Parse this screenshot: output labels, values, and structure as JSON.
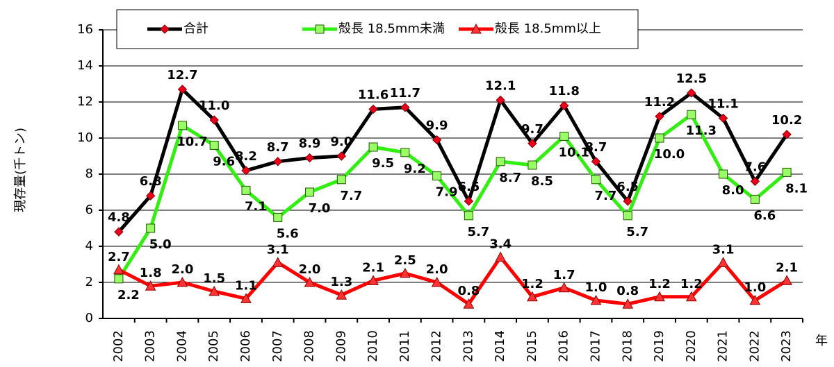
{
  "chart_data": {
    "type": "line",
    "y_label": "現存量(千トン)",
    "x_label": "年",
    "categories": [
      "2002",
      "2003",
      "2004",
      "2005",
      "2006",
      "2007",
      "2008",
      "2009",
      "2010",
      "2011",
      "2012",
      "2013",
      "2014",
      "2015",
      "2016",
      "2017",
      "2018",
      "2019",
      "2020",
      "2021",
      "2022",
      "2023"
    ],
    "series": [
      {
        "name": "合計",
        "color": "#000000",
        "marker": "diamond",
        "marker_color": "#e8001c",
        "values": [
          4.8,
          6.8,
          12.7,
          11.0,
          8.2,
          8.7,
          8.9,
          9.0,
          11.6,
          11.7,
          9.9,
          6.5,
          12.1,
          9.7,
          11.8,
          8.7,
          6.5,
          11.2,
          12.5,
          11.1,
          7.6,
          10.2
        ],
        "value_labels": [
          "4.8",
          "6.8",
          "12.7",
          "11.0",
          "8.2",
          "8.7",
          "8.9",
          "9.0",
          "11.6",
          "11.7",
          "9.9",
          "6.5",
          "12.1",
          "9.7",
          "11.8",
          "8.7",
          "6.5",
          "11.2",
          "12.5",
          "11.1",
          "7.6",
          "10.2"
        ]
      },
      {
        "name": "殻長 18.5mm未満",
        "color": "#33ee11",
        "marker": "square",
        "marker_color": "#99ff66",
        "values": [
          2.2,
          5.0,
          10.7,
          9.6,
          7.1,
          5.6,
          7.0,
          7.7,
          9.5,
          9.2,
          7.9,
          5.7,
          8.7,
          8.5,
          10.1,
          7.7,
          5.7,
          10.0,
          11.3,
          8.0,
          6.6,
          8.1
        ],
        "value_labels": [
          "2.2",
          "5.0",
          "10.7",
          "9.6",
          "7.1",
          "5.6",
          "7.0",
          "7.7",
          "9.5",
          "9.2",
          "7.9",
          "5.7",
          "8.7",
          "8.5",
          "10.1",
          "7.7",
          "5.7",
          "10.0",
          "11.3",
          "8.0",
          "6.6",
          "8.1"
        ]
      },
      {
        "name": "殻長 18.5mm以上",
        "color": "#ff0000",
        "marker": "triangle",
        "marker_color": "#ff3333",
        "values": [
          2.7,
          1.8,
          2.0,
          1.5,
          1.1,
          3.1,
          2.0,
          1.3,
          2.1,
          2.5,
          2.0,
          0.8,
          3.4,
          1.2,
          1.7,
          1.0,
          0.8,
          1.2,
          1.2,
          3.1,
          1.0,
          2.1
        ],
        "value_labels": [
          "2.7",
          "1.8",
          "2.0",
          "1.5",
          "1.1",
          "3.1",
          "2.0",
          "1.3",
          "2.1",
          "2.5",
          "2.0",
          "0.8",
          "3.4",
          "1.2",
          "1.7",
          "1.0",
          "0.8",
          "1.2",
          "1.2",
          "3.1",
          "1.0",
          "2.1"
        ]
      }
    ],
    "ylim": [
      0,
      16
    ],
    "yticks": [
      0,
      2,
      4,
      6,
      8,
      10,
      12,
      14,
      16
    ],
    "grid": true,
    "legend": "top"
  }
}
